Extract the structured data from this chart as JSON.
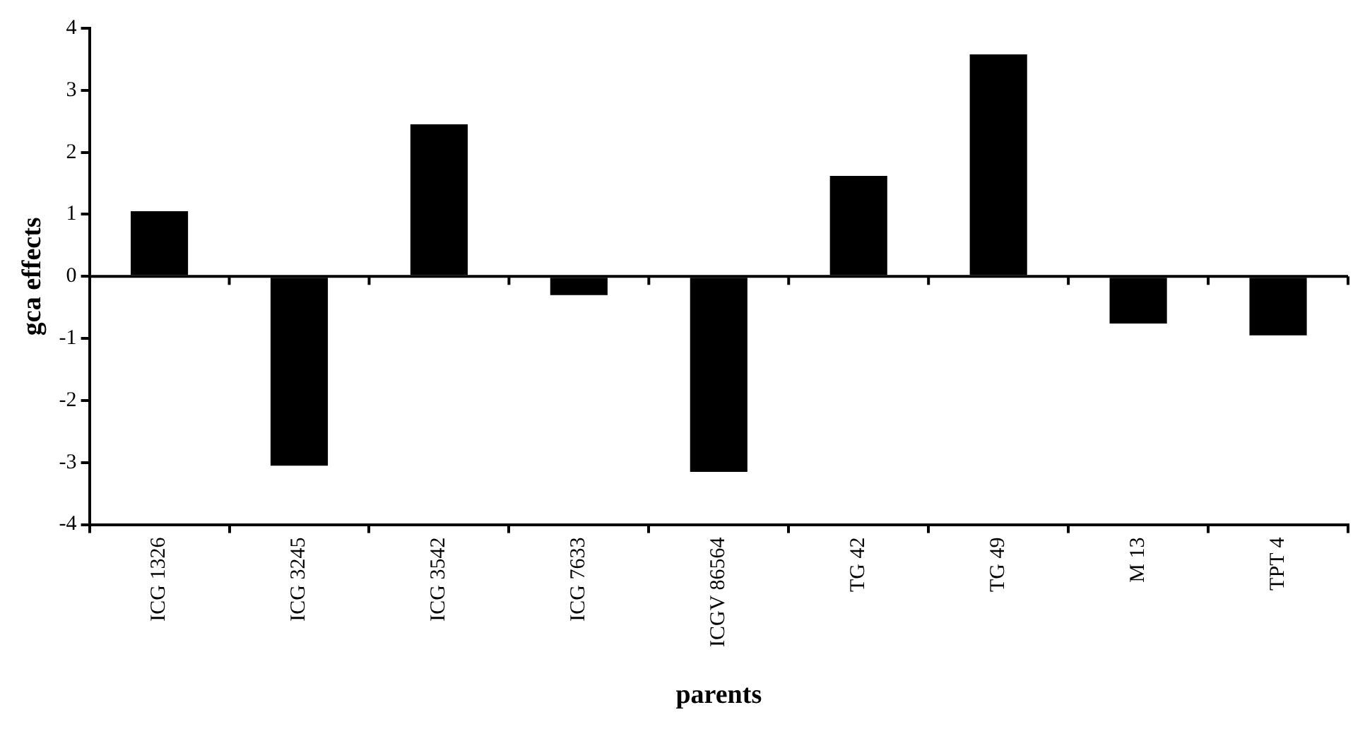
{
  "chart_data": {
    "type": "bar",
    "xlabel": "parents",
    "ylabel": "gca effects",
    "categories": [
      "ICG 1326",
      "ICG 3245",
      "ICG 3542",
      "ICG 7633",
      "ICGV 86564",
      "TG 42",
      "TG 49",
      "M 13",
      "TPT 4"
    ],
    "values": [
      1.05,
      -3.05,
      2.45,
      -0.3,
      -3.15,
      1.62,
      3.58,
      -0.76,
      -0.95
    ],
    "color": "#000000",
    "ylim": [
      -4,
      4
    ],
    "yticks": [
      -4,
      -3,
      -2,
      -1,
      0,
      1,
      2,
      3,
      4
    ],
    "ref_lines": [
      {
        "axis": "y",
        "value": 0,
        "color": "#000000"
      }
    ],
    "grid": false,
    "legend": false
  }
}
